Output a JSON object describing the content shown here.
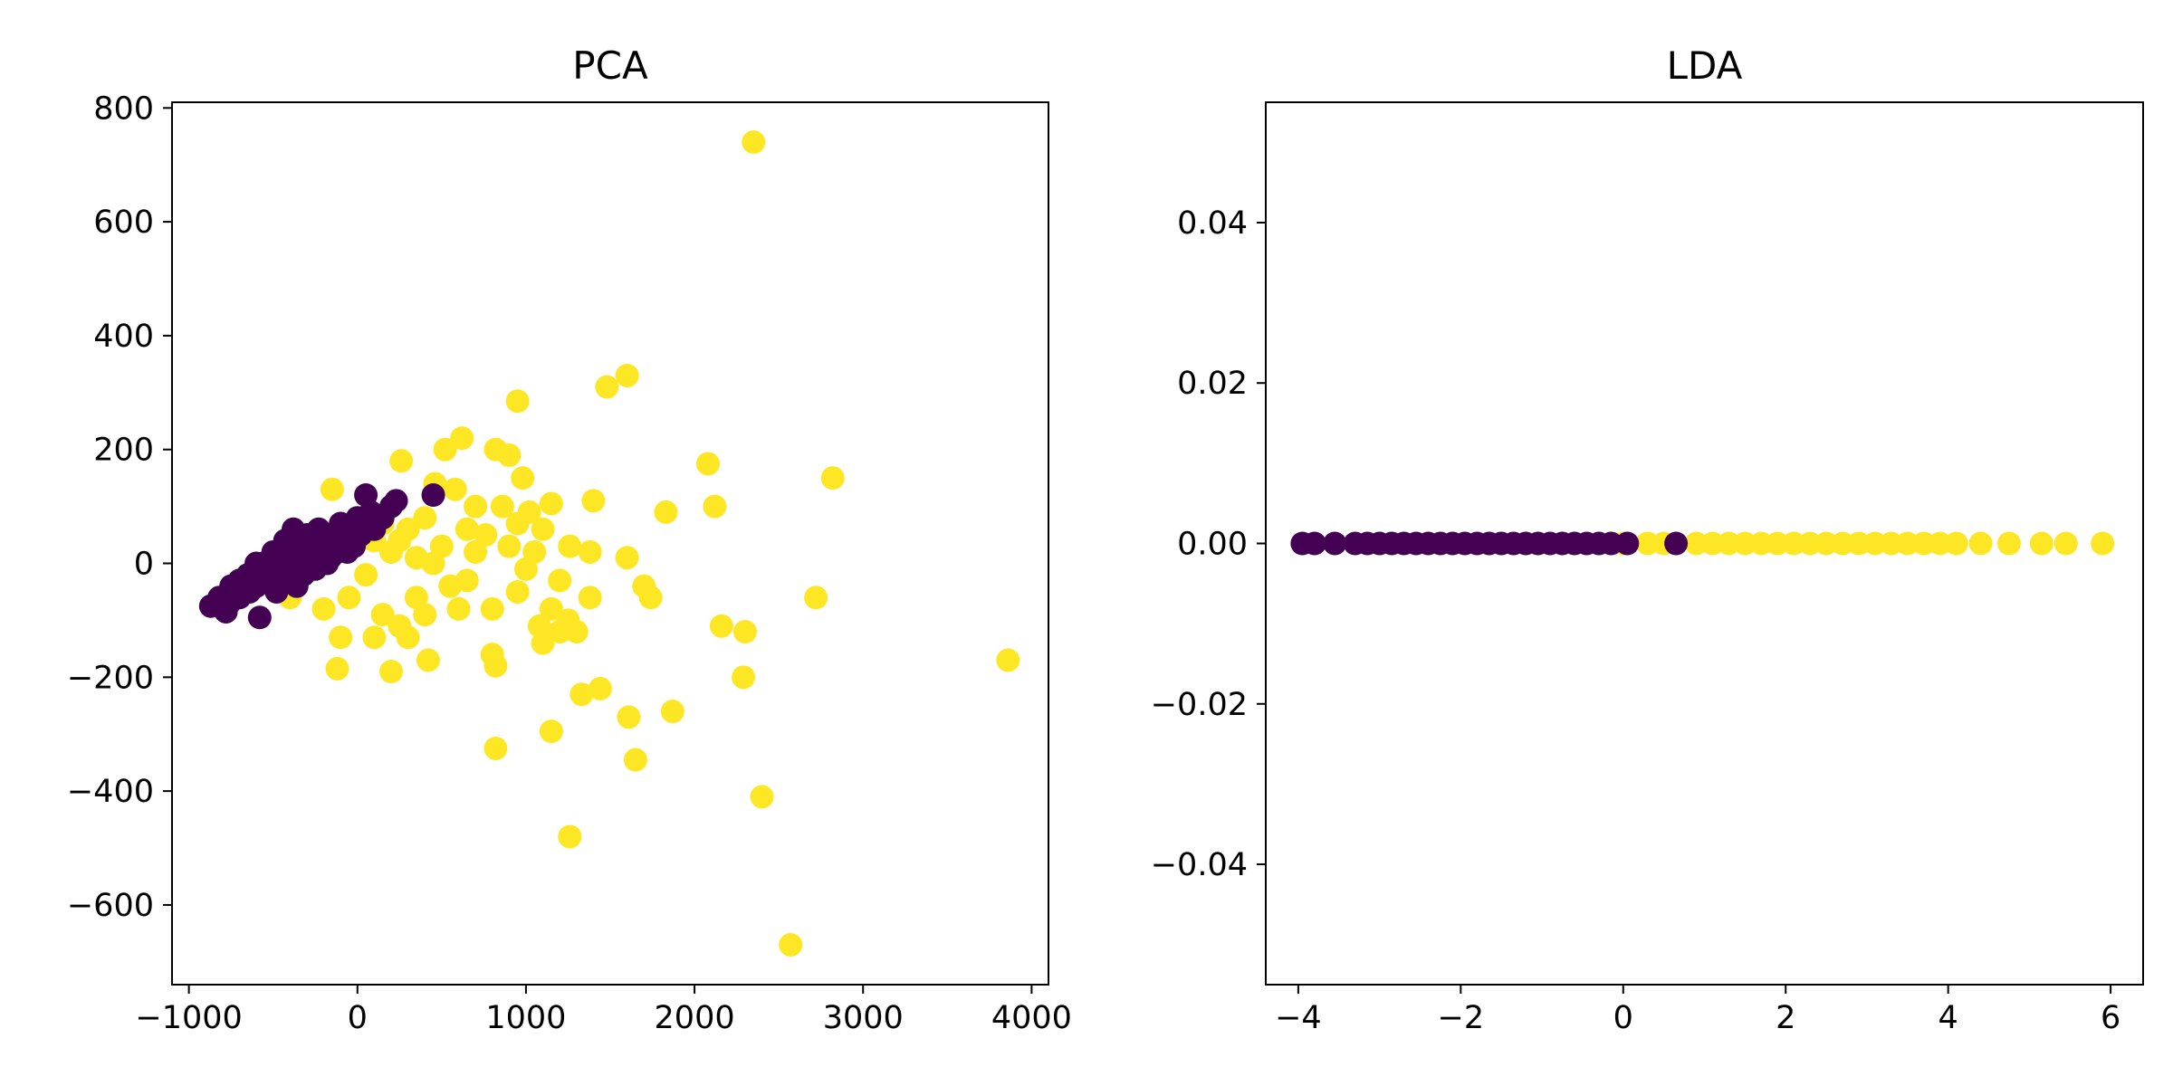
{
  "chart_data": [
    {
      "type": "scatter",
      "title": "PCA",
      "xlabel": "",
      "ylabel": "",
      "xlim": [
        -1100,
        4100
      ],
      "ylim": [
        -740,
        810
      ],
      "xticks": [
        -1000,
        0,
        1000,
        2000,
        3000,
        4000
      ],
      "xtick_labels": [
        "−1000",
        "0",
        "1000",
        "2000",
        "3000",
        "4000"
      ],
      "yticks": [
        -600,
        -400,
        -200,
        0,
        200,
        400,
        600,
        800
      ],
      "ytick_labels": [
        "−600",
        "−400",
        "−200",
        "0",
        "200",
        "400",
        "600",
        "800"
      ],
      "grid": false,
      "legend": "none",
      "class_colors": {
        "0": "#440154",
        "1": "#fde725"
      },
      "series": [
        {
          "class": 1,
          "points": [
            [
              2350,
              740
            ],
            [
              1600,
              330
            ],
            [
              1480,
              310
            ],
            [
              950,
              285
            ],
            [
              620,
              220
            ],
            [
              520,
              200
            ],
            [
              820,
              200
            ],
            [
              900,
              190
            ],
            [
              260,
              180
            ],
            [
              2080,
              175
            ],
            [
              2820,
              150
            ],
            [
              -150,
              130
            ],
            [
              580,
              130
            ],
            [
              980,
              150
            ],
            [
              460,
              140
            ],
            [
              1400,
              110
            ],
            [
              1150,
              105
            ],
            [
              2120,
              100
            ],
            [
              1830,
              90
            ],
            [
              700,
              100
            ],
            [
              860,
              100
            ],
            [
              1020,
              90
            ],
            [
              400,
              80
            ],
            [
              300,
              60
            ],
            [
              650,
              60
            ],
            [
              760,
              50
            ],
            [
              1100,
              60
            ],
            [
              1260,
              30
            ],
            [
              1380,
              20
            ],
            [
              1600,
              10
            ],
            [
              100,
              40
            ],
            [
              200,
              20
            ],
            [
              350,
              10
            ],
            [
              500,
              30
            ],
            [
              900,
              30
            ],
            [
              1000,
              -10
            ],
            [
              1200,
              -30
            ],
            [
              1700,
              -40
            ],
            [
              1740,
              -60
            ],
            [
              1380,
              -60
            ],
            [
              2720,
              -60
            ],
            [
              1150,
              -80
            ],
            [
              1250,
              -100
            ],
            [
              1080,
              -110
            ],
            [
              2160,
              -110
            ],
            [
              2300,
              -120
            ],
            [
              1200,
              -120
            ],
            [
              1300,
              -120
            ],
            [
              -100,
              -130
            ],
            [
              100,
              -130
            ],
            [
              300,
              -130
            ],
            [
              -400,
              -60
            ],
            [
              -200,
              -80
            ],
            [
              400,
              -90
            ],
            [
              600,
              -80
            ],
            [
              800,
              -80
            ],
            [
              950,
              -50
            ],
            [
              1100,
              -140
            ],
            [
              420,
              -170
            ],
            [
              800,
              -160
            ],
            [
              3860,
              -170
            ],
            [
              -120,
              -185
            ],
            [
              200,
              -190
            ],
            [
              820,
              -180
            ],
            [
              2290,
              -200
            ],
            [
              1330,
              -230
            ],
            [
              1440,
              -220
            ],
            [
              1870,
              -260
            ],
            [
              1610,
              -270
            ],
            [
              1150,
              -295
            ],
            [
              820,
              -325
            ],
            [
              1650,
              -345
            ],
            [
              2400,
              -410
            ],
            [
              1260,
              -480
            ],
            [
              2570,
              -670
            ],
            [
              150,
              70
            ],
            [
              250,
              40
            ],
            [
              450,
              0
            ],
            [
              550,
              -40
            ],
            [
              350,
              -60
            ],
            [
              50,
              -20
            ],
            [
              -50,
              -60
            ],
            [
              150,
              -90
            ],
            [
              250,
              -110
            ],
            [
              700,
              20
            ],
            [
              650,
              -30
            ],
            [
              1050,
              20
            ],
            [
              950,
              70
            ]
          ]
        },
        {
          "class": 0,
          "points": [
            [
              -870,
              -75
            ],
            [
              -780,
              -85
            ],
            [
              -750,
              -40
            ],
            [
              -700,
              -60
            ],
            [
              -650,
              -20
            ],
            [
              -600,
              -40
            ],
            [
              -580,
              -95
            ],
            [
              -560,
              0
            ],
            [
              -520,
              -30
            ],
            [
              -500,
              20
            ],
            [
              -460,
              -10
            ],
            [
              -430,
              40
            ],
            [
              -400,
              -30
            ],
            [
              -380,
              60
            ],
            [
              -350,
              10
            ],
            [
              -320,
              -20
            ],
            [
              -300,
              50
            ],
            [
              -270,
              20
            ],
            [
              -250,
              -10
            ],
            [
              -230,
              60
            ],
            [
              -200,
              30
            ],
            [
              -180,
              0
            ],
            [
              -150,
              50
            ],
            [
              -120,
              20
            ],
            [
              -100,
              70
            ],
            [
              -80,
              40
            ],
            [
              -50,
              60
            ],
            [
              -20,
              30
            ],
            [
              0,
              80
            ],
            [
              30,
              60
            ],
            [
              50,
              120
            ],
            [
              80,
              90
            ],
            [
              100,
              60
            ],
            [
              150,
              80
            ],
            [
              200,
              100
            ],
            [
              230,
              110
            ],
            [
              450,
              120
            ],
            [
              -480,
              -50
            ],
            [
              -420,
              -20
            ],
            [
              -360,
              -40
            ],
            [
              -300,
              0
            ],
            [
              -240,
              10
            ],
            [
              -700,
              -30
            ],
            [
              -640,
              -50
            ],
            [
              -600,
              0
            ],
            [
              -540,
              -10
            ],
            [
              -440,
              20
            ],
            [
              -340,
              30
            ],
            [
              -260,
              40
            ],
            [
              -160,
              10
            ],
            [
              -60,
              20
            ],
            [
              20,
              50
            ],
            [
              -820,
              -60
            ],
            [
              -760,
              -70
            ]
          ]
        }
      ]
    },
    {
      "type": "scatter",
      "title": "LDA",
      "xlabel": "",
      "ylabel": "",
      "xlim": [
        -4.4,
        6.4
      ],
      "ylim": [
        -0.055,
        0.055
      ],
      "xticks": [
        -4,
        -2,
        0,
        2,
        4,
        6
      ],
      "xtick_labels": [
        "−4",
        "−2",
        "0",
        "2",
        "4",
        "6"
      ],
      "yticks": [
        -0.04,
        -0.02,
        0.0,
        0.02,
        0.04
      ],
      "ytick_labels": [
        "−0.04",
        "−0.02",
        "0.00",
        "0.02",
        "0.04"
      ],
      "grid": false,
      "legend": "none",
      "class_colors": {
        "0": "#440154",
        "1": "#fde725"
      },
      "series": [
        {
          "class": 1,
          "points": [
            [
              0.0,
              0
            ],
            [
              0.3,
              0
            ],
            [
              0.5,
              0
            ],
            [
              0.9,
              0
            ],
            [
              1.1,
              0
            ],
            [
              1.3,
              0
            ],
            [
              1.5,
              0
            ],
            [
              1.7,
              0
            ],
            [
              1.9,
              0
            ],
            [
              2.1,
              0
            ],
            [
              2.3,
              0
            ],
            [
              2.5,
              0
            ],
            [
              2.7,
              0
            ],
            [
              2.9,
              0
            ],
            [
              3.1,
              0
            ],
            [
              3.3,
              0
            ],
            [
              3.5,
              0
            ],
            [
              3.7,
              0
            ],
            [
              3.9,
              0
            ],
            [
              4.1,
              0
            ],
            [
              4.4,
              0
            ],
            [
              4.75,
              0
            ],
            [
              5.15,
              0
            ],
            [
              5.45,
              0
            ],
            [
              5.9,
              0
            ]
          ]
        },
        {
          "class": 0,
          "points": [
            [
              -3.95,
              0
            ],
            [
              -3.8,
              0
            ],
            [
              -3.55,
              0
            ],
            [
              -3.3,
              0
            ],
            [
              -3.15,
              0
            ],
            [
              -3.0,
              0
            ],
            [
              -2.85,
              0
            ],
            [
              -2.7,
              0
            ],
            [
              -2.55,
              0
            ],
            [
              -2.4,
              0
            ],
            [
              -2.25,
              0
            ],
            [
              -2.1,
              0
            ],
            [
              -1.95,
              0
            ],
            [
              -1.8,
              0
            ],
            [
              -1.65,
              0
            ],
            [
              -1.5,
              0
            ],
            [
              -1.35,
              0
            ],
            [
              -1.2,
              0
            ],
            [
              -1.05,
              0
            ],
            [
              -0.9,
              0
            ],
            [
              -0.75,
              0
            ],
            [
              -0.6,
              0
            ],
            [
              -0.45,
              0
            ],
            [
              -0.3,
              0
            ],
            [
              -0.15,
              0
            ],
            [
              0.05,
              0
            ],
            [
              0.65,
              0
            ]
          ]
        }
      ]
    }
  ]
}
